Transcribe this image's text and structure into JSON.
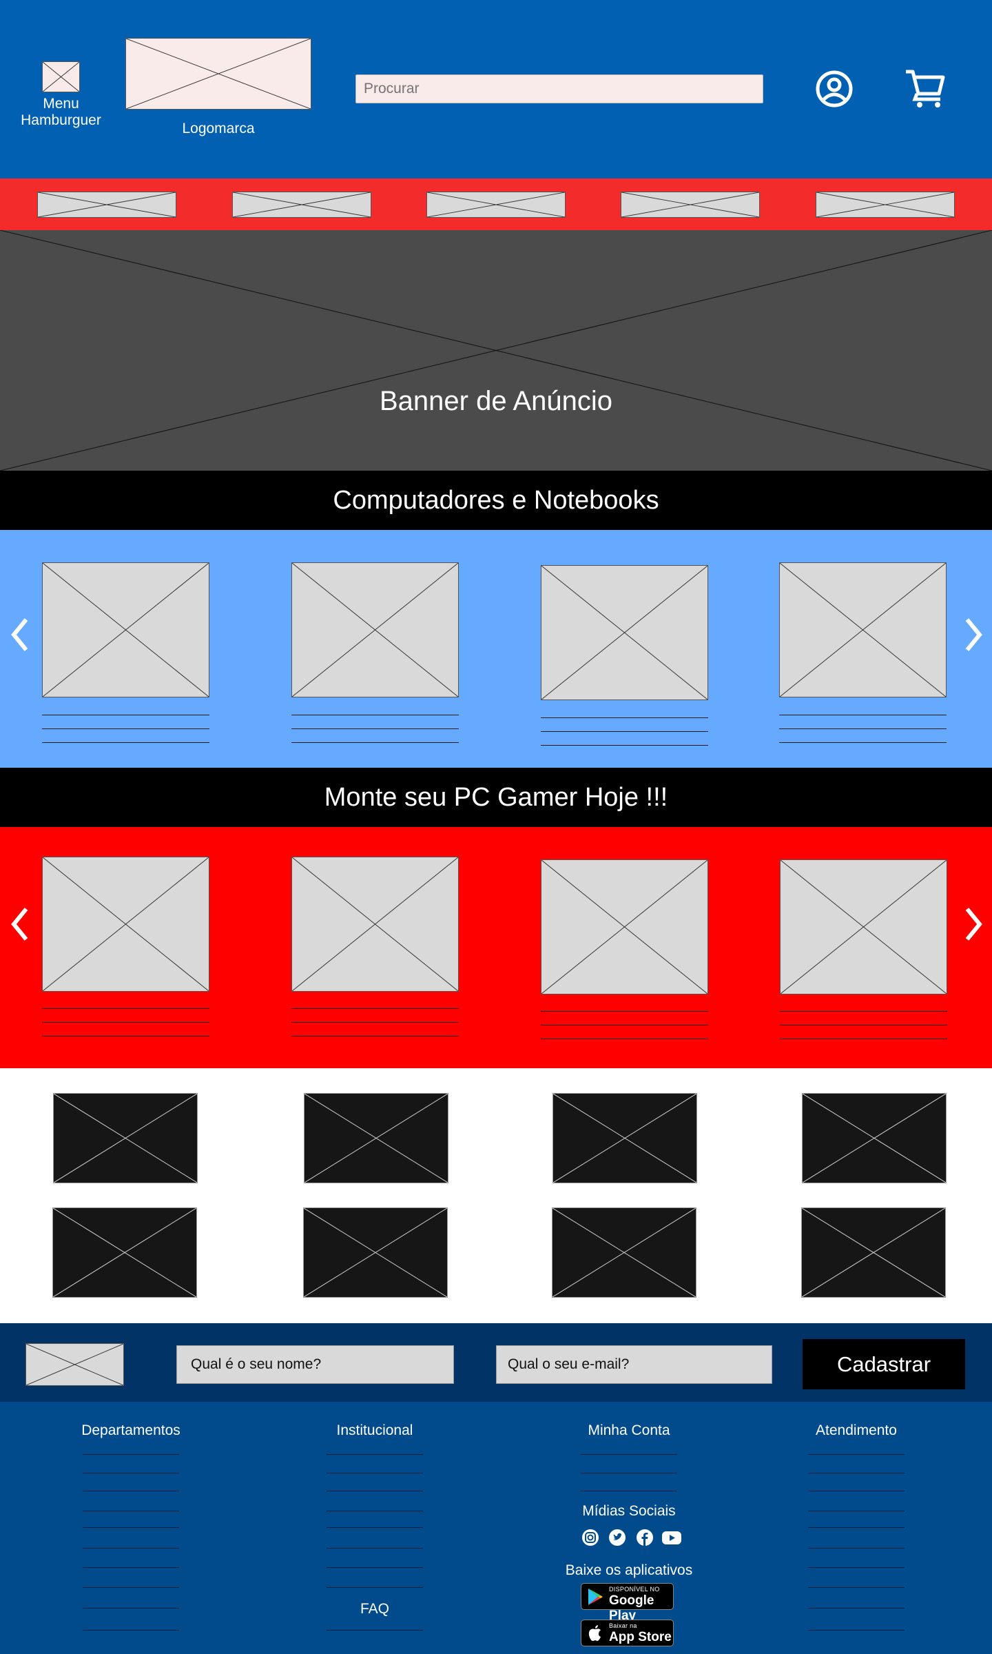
{
  "header": {
    "menu_label": "Menu Hamburguer",
    "logo_label": "Logomarca",
    "search_placeholder": "Procurar"
  },
  "banner": {
    "title": "Banner de Anúncio"
  },
  "sections": {
    "computers_title": "Computadores e Notebooks",
    "gamer_title": "Monte seu PC Gamer Hoje !!!"
  },
  "newsletter": {
    "name_placeholder": "Qual é o seu nome?",
    "email_placeholder": "Qual o seu e-mail?",
    "submit_label": "Cadastrar"
  },
  "footer": {
    "departamentos": "Departamentos",
    "institucional": "Institucional",
    "minha_conta": "Minha Conta",
    "atendimento": "Atendimento",
    "midias_sociais": "Mídias Sociais",
    "baixe_apps": "Baixe os aplicativos",
    "faq": "FAQ",
    "google_small": "DISPONÍVEL NO",
    "google_big": "Google Play",
    "apple_small": "Baixar na",
    "apple_big": "App Store"
  },
  "icons": {
    "menu": "hamburger-icon",
    "account": "user-icon",
    "cart": "cart-icon",
    "prev": "chevron-left-icon",
    "next": "chevron-right-icon",
    "instagram": "instagram-icon",
    "twitter": "twitter-icon",
    "facebook": "facebook-icon",
    "youtube": "youtube-icon"
  },
  "colors": {
    "header_bg": "#0160b2",
    "category_strip": "#f32b2b",
    "banner_bg": "#4b4b4b",
    "section_title_bg": "#000000",
    "computers_bg": "#66aaff",
    "gamer_bg": "#ff0000",
    "newsletter_bg": "#023366",
    "footer_bg": "#014b8c"
  }
}
